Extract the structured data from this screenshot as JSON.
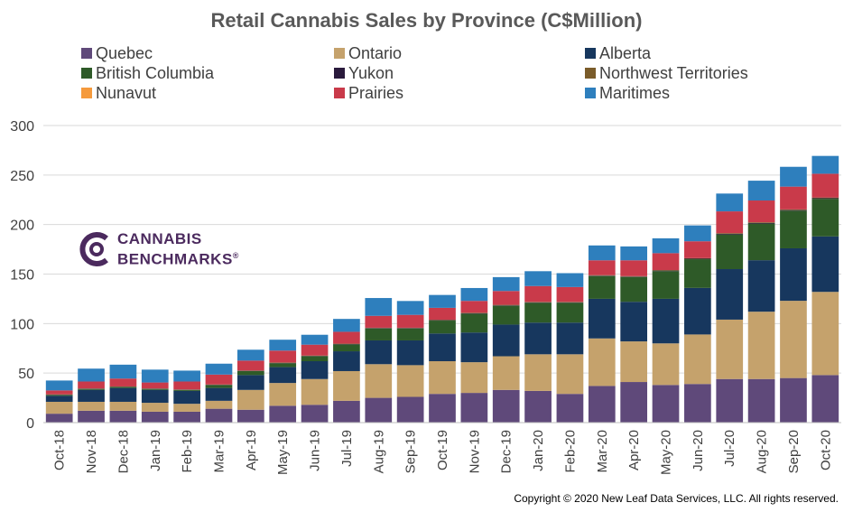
{
  "chart_data": {
    "type": "bar",
    "stacked": true,
    "title": "Retail Cannabis Sales by Province (C$Million)",
    "xlabel": "",
    "ylabel": "",
    "ylim": [
      0,
      300
    ],
    "yticks": [
      0,
      50,
      100,
      150,
      200,
      250,
      300
    ],
    "grid": true,
    "legend_position": "top",
    "categories": [
      "Oct-18",
      "Nov-18",
      "Dec-18",
      "Jan-19",
      "Feb-19",
      "Mar-19",
      "Apr-19",
      "May-19",
      "Jun-19",
      "Jul-19",
      "Aug-19",
      "Sep-19",
      "Oct-19",
      "Nov-19",
      "Dec-19",
      "Jan-20",
      "Feb-20",
      "Mar-20",
      "Apr-20",
      "May-20",
      "Jun-20",
      "Jul-20",
      "Aug-20",
      "Sep-20",
      "Oct-20"
    ],
    "series": [
      {
        "name": "Quebec",
        "color": "#5f497a",
        "values": [
          9,
          12,
          12,
          11,
          11,
          14,
          13,
          17,
          18,
          22,
          25,
          26,
          29,
          30,
          33,
          32,
          29,
          37,
          41,
          38,
          39,
          44,
          44,
          45,
          48
        ]
      },
      {
        "name": "Ontario",
        "color": "#c5a26c",
        "values": [
          12,
          9,
          9,
          9,
          8,
          8,
          20,
          23,
          26,
          30,
          34,
          32,
          33,
          31,
          34,
          37,
          40,
          48,
          41,
          42,
          50,
          60,
          68,
          78,
          84
        ]
      },
      {
        "name": "Alberta",
        "color": "#17375e",
        "values": [
          6,
          12,
          14,
          13,
          13,
          13,
          15,
          16,
          18,
          20,
          24,
          25,
          28,
          30,
          32,
          32,
          32,
          40,
          40,
          45,
          47,
          51,
          52,
          53,
          56
        ]
      },
      {
        "name": "British Columbia",
        "color": "#2e5a28",
        "values": [
          1,
          1,
          1,
          1,
          1,
          3,
          4,
          4,
          5,
          7,
          12,
          12,
          13,
          19,
          19,
          20,
          20,
          23,
          25,
          28,
          29,
          35,
          37,
          38,
          38
        ]
      },
      {
        "name": "Yukon",
        "color": "#2a1a3c",
        "values": [
          0.2,
          0.2,
          0.2,
          0.2,
          0.2,
          0.2,
          0.3,
          0.3,
          0.3,
          0.3,
          0.4,
          0.4,
          0.4,
          0.4,
          0.4,
          0.4,
          0.4,
          0.4,
          0.4,
          0.5,
          0.5,
          0.6,
          0.6,
          0.6,
          0.6
        ]
      },
      {
        "name": "Northwest Territories",
        "color": "#7a5c2a",
        "values": [
          0.3,
          0.3,
          0.3,
          0.3,
          0.3,
          0.3,
          0.3,
          0.4,
          0.4,
          0.4,
          0.4,
          0.4,
          0.5,
          0.5,
          0.5,
          0.5,
          0.5,
          0.5,
          0.5,
          0.6,
          0.6,
          0.7,
          0.7,
          0.7,
          0.7
        ]
      },
      {
        "name": "Nunavut",
        "color": "#f59a3c",
        "values": [
          0,
          0,
          0,
          0,
          0,
          0,
          0,
          0,
          0,
          0,
          0,
          0,
          0,
          0,
          0,
          0,
          0,
          0,
          0,
          0,
          0,
          0,
          0,
          0,
          0
        ]
      },
      {
        "name": "Prairies",
        "color": "#c93a4a",
        "values": [
          4,
          7,
          8,
          6,
          8,
          10,
          10,
          12,
          11,
          12,
          12,
          13,
          12,
          12,
          14,
          16,
          15,
          15,
          16,
          17,
          17,
          22,
          22,
          23,
          24
        ]
      },
      {
        "name": "Maritimes",
        "color": "#2e7fbd",
        "values": [
          10,
          13,
          14,
          13,
          11,
          11,
          11,
          11,
          10,
          13,
          18,
          14,
          13,
          13,
          14,
          15,
          14,
          15,
          14,
          15,
          16,
          18,
          20,
          20,
          18
        ]
      }
    ]
  },
  "logo": {
    "line1": "CANNABIS",
    "line2": "BENCHMARKS",
    "mark": "®"
  },
  "copyright": "Copyright © 2020 New Leaf Data Services, LLC. All rights reserved."
}
